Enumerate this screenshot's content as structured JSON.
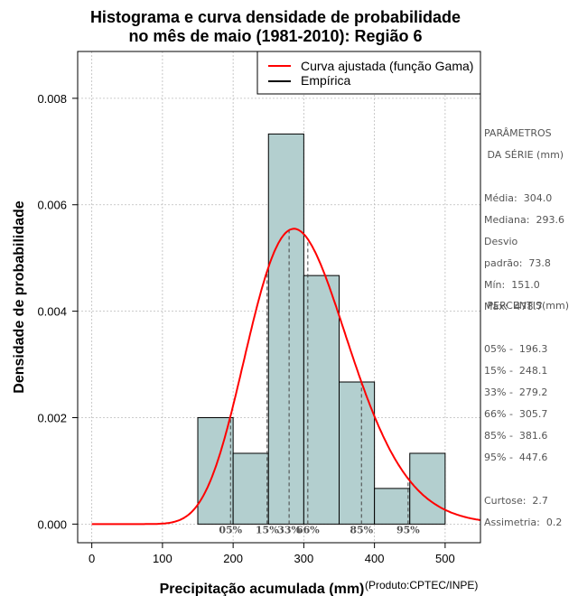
{
  "chart_data": {
    "type": "bar",
    "title_line1": "Histograma e curva densidade de probabilidade",
    "title_line2": "no mês de maio (1981-2010): Região 6",
    "xlabel": "Precipitação acumulada (mm)",
    "ylabel": "Densidade de probabilidade",
    "credit": "(Produto:CPTEC/INPE)",
    "xlim": [
      -20,
      550
    ],
    "ylim": [
      -0.00035,
      0.00888
    ],
    "x_ticks": [
      0,
      100,
      200,
      300,
      400,
      500
    ],
    "y_ticks": [
      0.0,
      0.002,
      0.004,
      0.006,
      0.008
    ],
    "y_tick_labels": [
      "0.000",
      "0.002",
      "0.004",
      "0.006",
      "0.008"
    ],
    "grid": true,
    "bins": [
      {
        "from": 150,
        "to": 200,
        "density": 0.002
      },
      {
        "from": 200,
        "to": 250,
        "density": 0.00133
      },
      {
        "from": 250,
        "to": 300,
        "density": 0.00733
      },
      {
        "from": 300,
        "to": 350,
        "density": 0.00467
      },
      {
        "from": 350,
        "to": 400,
        "density": 0.00267
      },
      {
        "from": 400,
        "to": 450,
        "density": 0.00067
      },
      {
        "from": 450,
        "to": 500,
        "density": 0.00133
      }
    ],
    "gamma_fit": {
      "shape": 17.0,
      "scale": 17.88
    },
    "percentile_lines": [
      {
        "label": "05%",
        "value": 196.3
      },
      {
        "label": "15%",
        "value": 248.1
      },
      {
        "label": "33%",
        "value": 279.2
      },
      {
        "label": "66%",
        "value": 305.7
      },
      {
        "label": "85%",
        "value": 381.6
      },
      {
        "label": "95%",
        "value": 447.6
      }
    ],
    "legend": [
      {
        "label": "Curva ajustada (função Gama)",
        "color": "#ff0000"
      },
      {
        "label": "Empírica",
        "color": "#000000"
      }
    ],
    "legend_position": "top-right",
    "colors": {
      "bar_fill": "#b3cfcf",
      "curve": "#ff0000",
      "grid": "#bbbbbb"
    }
  },
  "side_panel": {
    "params_title_1": "PARÂMETROS",
    "params_title_2": " DA SÉRIE (mm)",
    "media": "Média:  304.0",
    "mediana": "Mediana:  293.6",
    "desvio_1": "Desvio",
    "desvio_2": "padrão:  73.8",
    "min": "Mín:  151.0",
    "max": "Máx:  478.7",
    "percentis_title": " PERCENTIS(mm)",
    "p05": "05% -  196.3",
    "p15": "15% -  248.1",
    "p33": "33% -  279.2",
    "p66": "66% -  305.7",
    "p85": "85% -  381.6",
    "p95": "95% -  447.6",
    "curtose": "Curtose:  2.7",
    "assimetria": "Assimetria:  0.2"
  }
}
